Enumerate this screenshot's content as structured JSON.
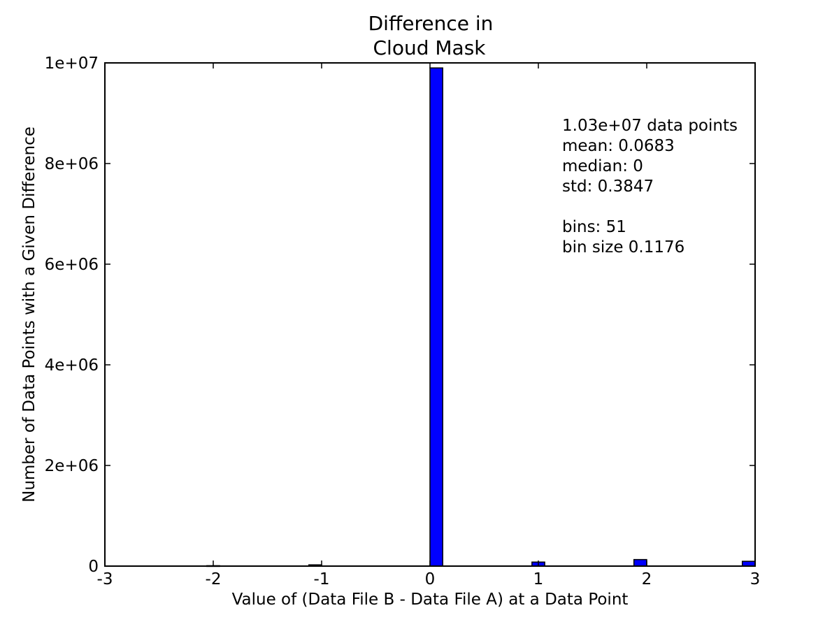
{
  "chart_data": {
    "type": "bar",
    "title_lines": [
      "Difference in",
      "Cloud Mask"
    ],
    "xlabel": "Value of (Data File B - Data File A) at a Data Point",
    "ylabel": "Number of Data Points with a Given Difference",
    "xlim": [
      -3,
      3
    ],
    "ylim": [
      0,
      10000000
    ],
    "x_ticks": [
      {
        "value": -3,
        "label": "-3"
      },
      {
        "value": -2,
        "label": "-2"
      },
      {
        "value": -1,
        "label": "-1"
      },
      {
        "value": 0,
        "label": "0"
      },
      {
        "value": 1,
        "label": "1"
      },
      {
        "value": 2,
        "label": "2"
      },
      {
        "value": 3,
        "label": "3"
      }
    ],
    "y_ticks": [
      {
        "value": 0,
        "label": "0"
      },
      {
        "value": 2000000,
        "label": "2e+06"
      },
      {
        "value": 4000000,
        "label": "4e+06"
      },
      {
        "value": 6000000,
        "label": "6e+06"
      },
      {
        "value": 8000000,
        "label": "8e+06"
      },
      {
        "value": 10000000,
        "label": "1e+07"
      }
    ],
    "bin_width": 0.1176,
    "bars": [
      {
        "x0": -2.059,
        "value": 8000
      },
      {
        "x0": -1.118,
        "value": 25000
      },
      {
        "x0": 0.0,
        "value": 9900000
      },
      {
        "x0": 0.941,
        "value": 80000
      },
      {
        "x0": 1.882,
        "value": 130000
      },
      {
        "x0": 2.882,
        "value": 95000
      }
    ],
    "bar_color": "#0000ff",
    "annotation_lines": [
      "1.03e+07 data points",
      "mean: 0.0683",
      "median: 0",
      "std: 0.3847",
      "",
      "bins: 51",
      "bin size 0.1176"
    ],
    "grid": false,
    "legend": false
  }
}
